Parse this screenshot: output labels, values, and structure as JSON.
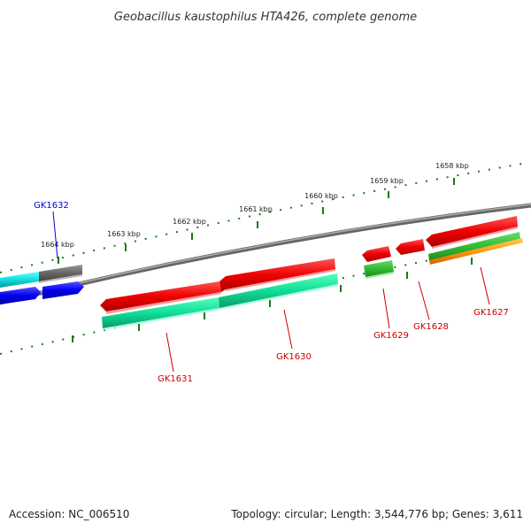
{
  "title": "Geobacillus kaustophilus HTA426, complete genome",
  "footer": {
    "accession": "Accession: NC_006510",
    "summary": "Topology: circular; Length: 3,544,776 bp; Genes: 3,611"
  },
  "scale_labels": [
    "1664 kbp",
    "1663 kbp",
    "1662 kbp",
    "1661 kbp",
    "1660 kbp",
    "1659 kbp",
    "1658 kbp"
  ],
  "genes": [
    {
      "name": "GK1632",
      "color": "#0000cc"
    },
    {
      "name": "GK1631",
      "color": "#cc0000"
    },
    {
      "name": "GK1630",
      "color": "#cc0000"
    },
    {
      "name": "GK1629",
      "color": "#cc0000"
    },
    {
      "name": "GK1628",
      "color": "#cc0000"
    },
    {
      "name": "GK1627",
      "color": "#cc0000"
    }
  ],
  "colors": {
    "backbone": "#808080",
    "ticks": "#1a7a1a",
    "cds": "#ee1111",
    "rna": "#22ee99",
    "cyan": "#22dddd",
    "blue": "#1111ee",
    "gray": "#666666",
    "green": "#33bb33",
    "orange": "#ff9911"
  }
}
